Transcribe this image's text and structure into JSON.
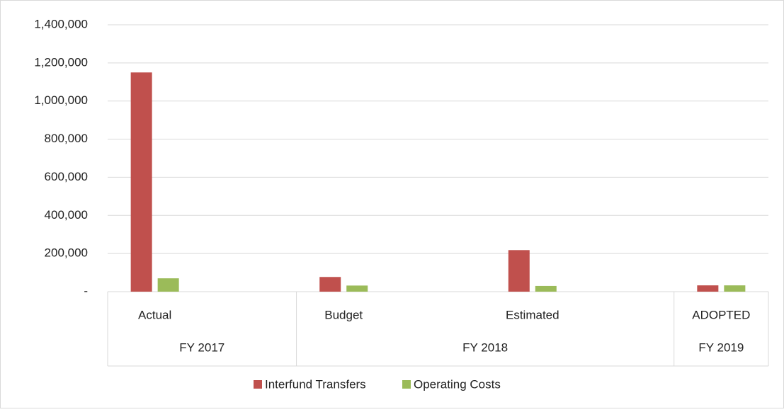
{
  "chart_data": {
    "type": "bar",
    "categories": [
      "Actual",
      null,
      "Budget",
      null,
      "Estimated",
      null,
      "ADOPTED"
    ],
    "groups": [
      "FY 2017",
      "FY 2017",
      "FY 2018",
      "FY 2018",
      "FY 2018",
      "FY 2018",
      "FY 2019"
    ],
    "series": [
      {
        "name": "Interfund Transfers",
        "color": "#c0504d",
        "values": [
          1150000,
          null,
          77000,
          null,
          218000,
          null,
          33000
        ]
      },
      {
        "name": "Operating Costs",
        "color": "#9bbb59",
        "values": [
          70000,
          null,
          32000,
          null,
          30000,
          null,
          33000
        ]
      }
    ],
    "ylim": [
      0,
      1400000
    ],
    "yticks": [
      {
        "value": 0,
        "label": "-"
      },
      {
        "value": 200000,
        "label": "200,000"
      },
      {
        "value": 400000,
        "label": "400,000"
      },
      {
        "value": 600000,
        "label": "600,000"
      },
      {
        "value": 800000,
        "label": "800,000"
      },
      {
        "value": 1000000,
        "label": "1,000,000"
      },
      {
        "value": 1200000,
        "label": "1,200,000"
      },
      {
        "value": 1400000,
        "label": "1,400,000"
      }
    ],
    "grid": true,
    "legend": "bottom"
  }
}
